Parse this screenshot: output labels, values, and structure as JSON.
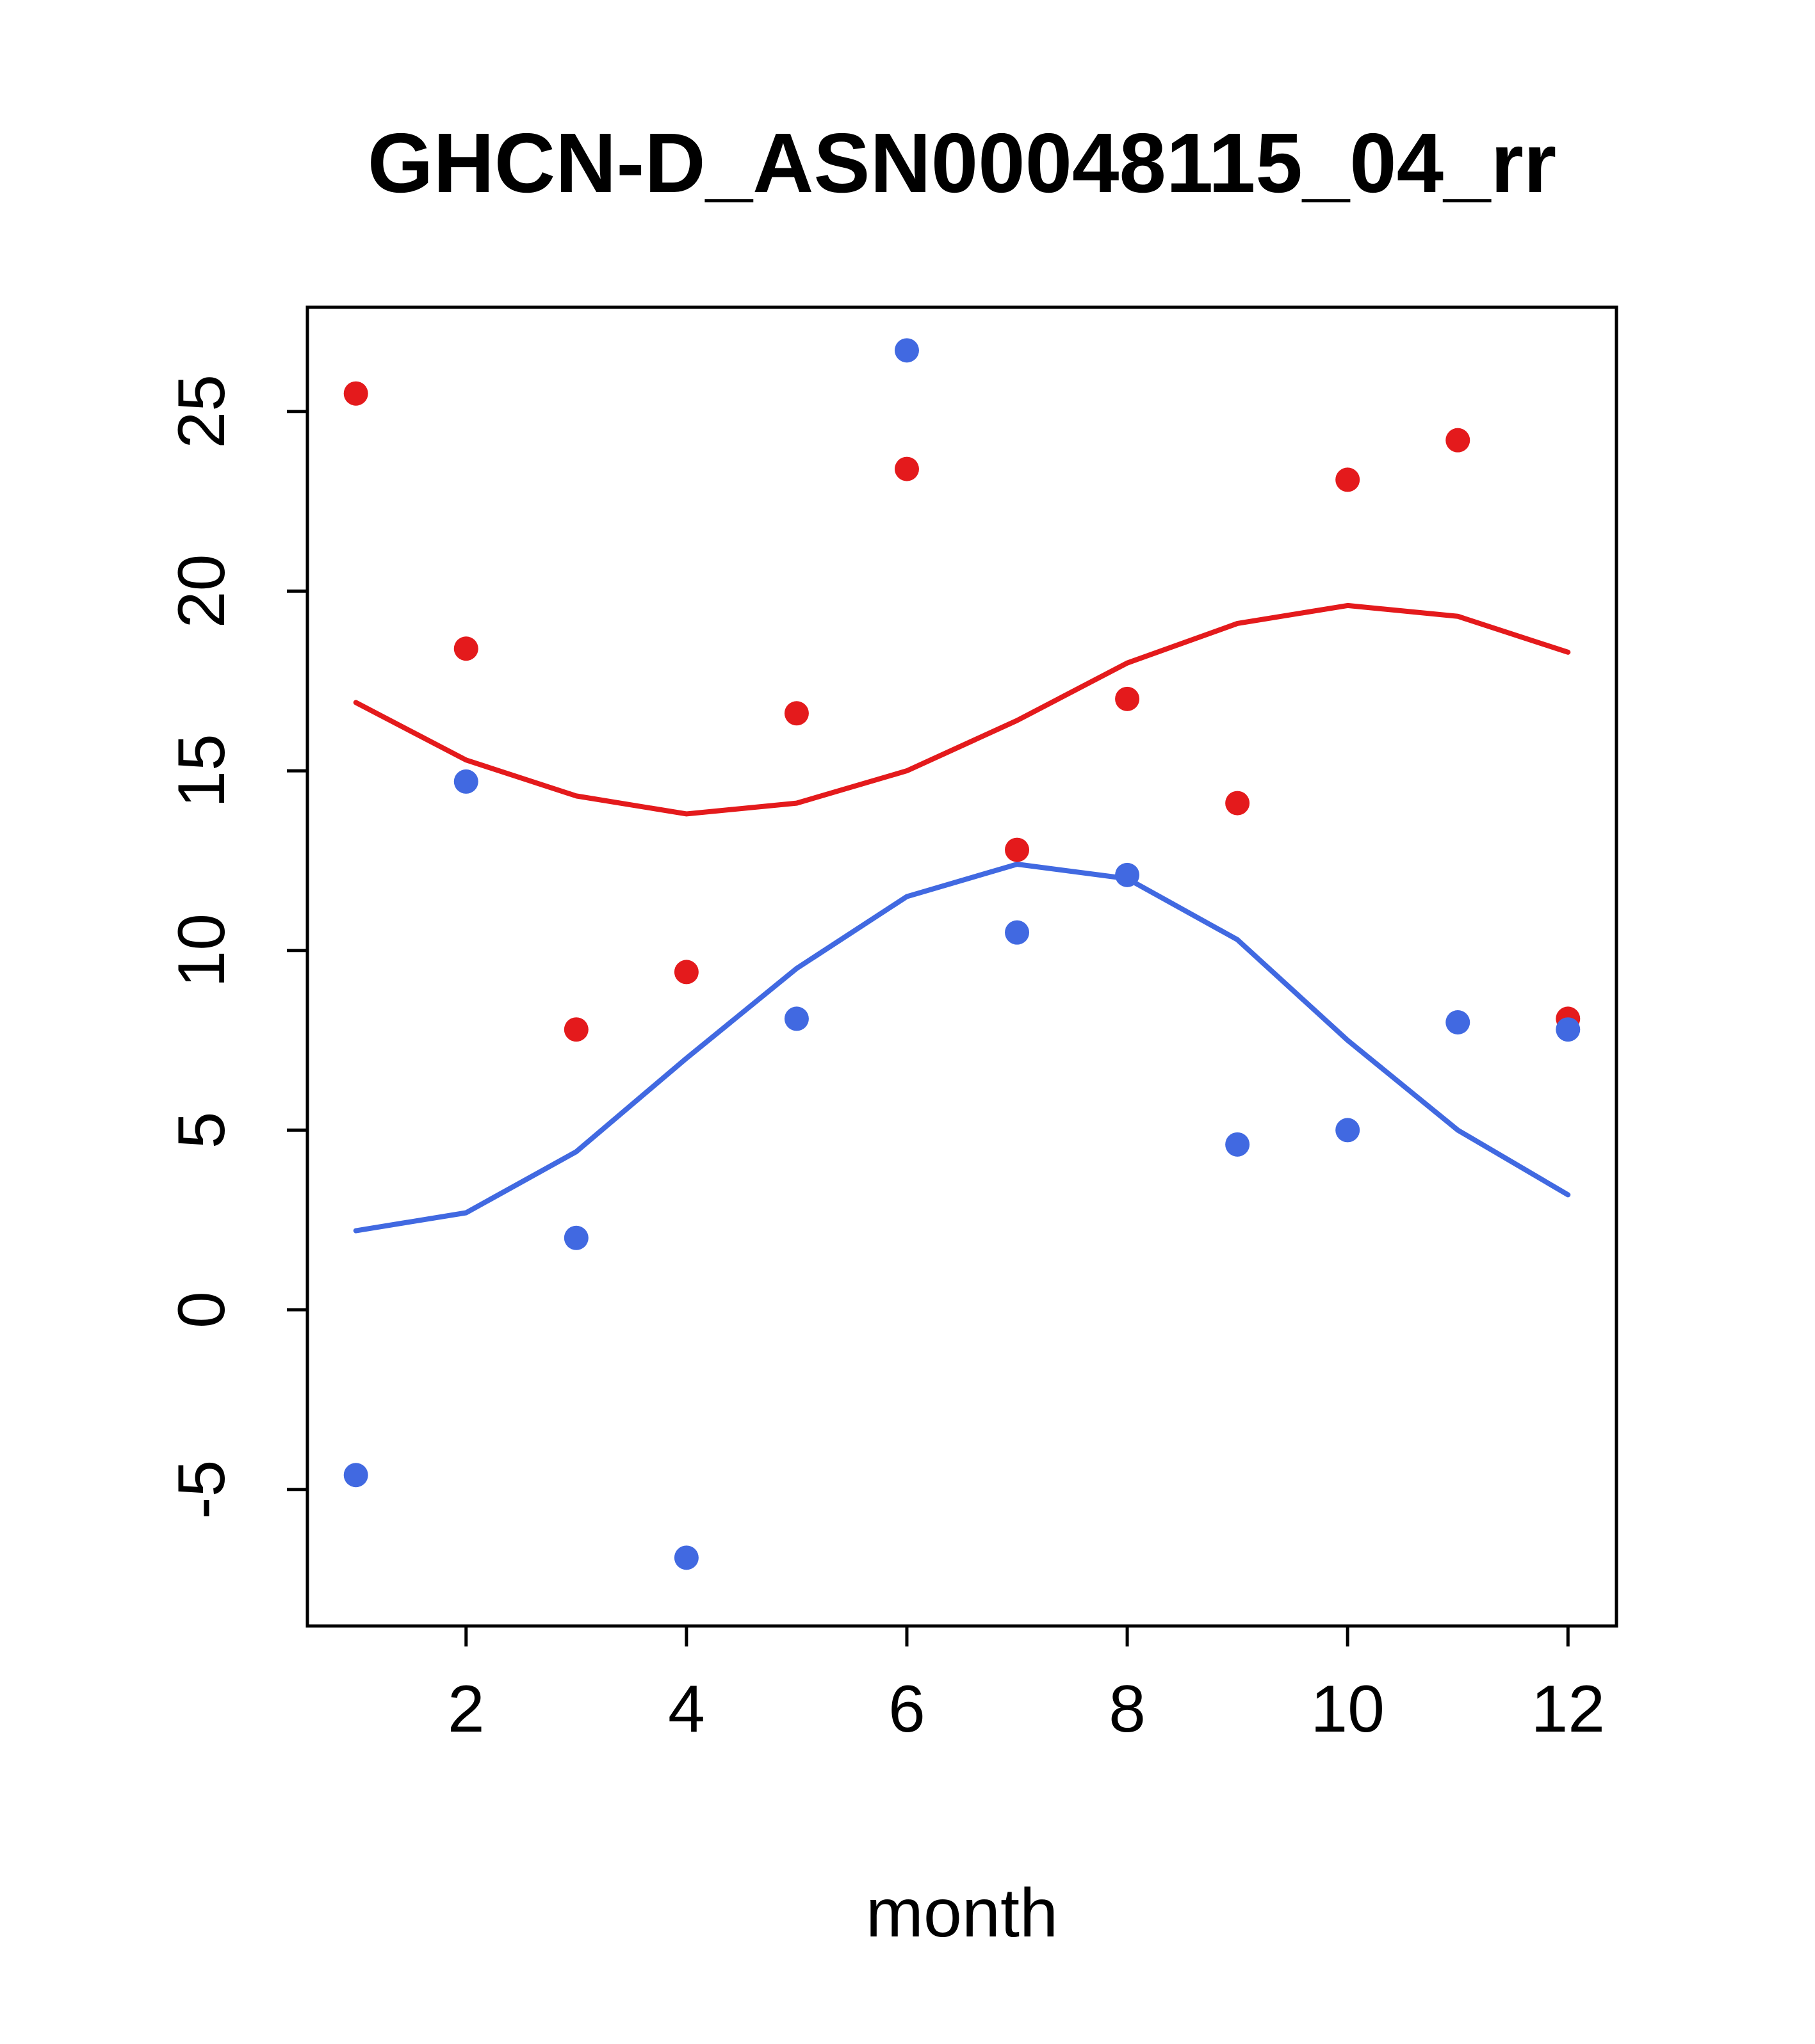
{
  "title": "GHCN-D_ASN00048115_04_rr",
  "chart_data": {
    "type": "scatter",
    "title": "GHCN-D_ASN00048115_04_rr",
    "xlabel": "month",
    "ylabel": "",
    "x": [
      1,
      2,
      3,
      4,
      5,
      6,
      7,
      8,
      9,
      10,
      11,
      12
    ],
    "xticks": [
      2,
      4,
      6,
      8,
      10,
      12
    ],
    "yticks": [
      -5,
      0,
      5,
      10,
      15,
      20,
      25
    ],
    "xlim": [
      0.56,
      12.44
    ],
    "ylim": [
      -8.8,
      27.9
    ],
    "grid": false,
    "legend": "none",
    "colors": {
      "red": "#e41a1c",
      "blue": "#4169e1",
      "frame": "#000000"
    },
    "series": [
      {
        "name": "red-points",
        "kind": "points",
        "color": "#e41a1c",
        "values": [
          25.5,
          18.4,
          7.8,
          9.4,
          16.6,
          23.4,
          12.8,
          17.0,
          14.1,
          23.1,
          24.2,
          8.1
        ]
      },
      {
        "name": "blue-points",
        "kind": "points",
        "color": "#4169e1",
        "values": [
          -4.6,
          14.7,
          2.0,
          -6.9,
          8.1,
          26.7,
          10.5,
          12.1,
          4.6,
          5.0,
          8.0,
          7.8
        ]
      },
      {
        "name": "red-trend-line",
        "kind": "line",
        "color": "#e41a1c",
        "values": [
          16.9,
          15.3,
          14.3,
          13.8,
          14.1,
          15.0,
          16.4,
          18.0,
          19.1,
          19.6,
          19.3,
          18.3
        ]
      },
      {
        "name": "blue-trend-line",
        "kind": "line",
        "color": "#4169e1",
        "values": [
          2.2,
          2.7,
          4.4,
          7.0,
          9.5,
          11.5,
          12.4,
          12.0,
          10.3,
          7.5,
          5.0,
          3.2
        ]
      }
    ]
  }
}
